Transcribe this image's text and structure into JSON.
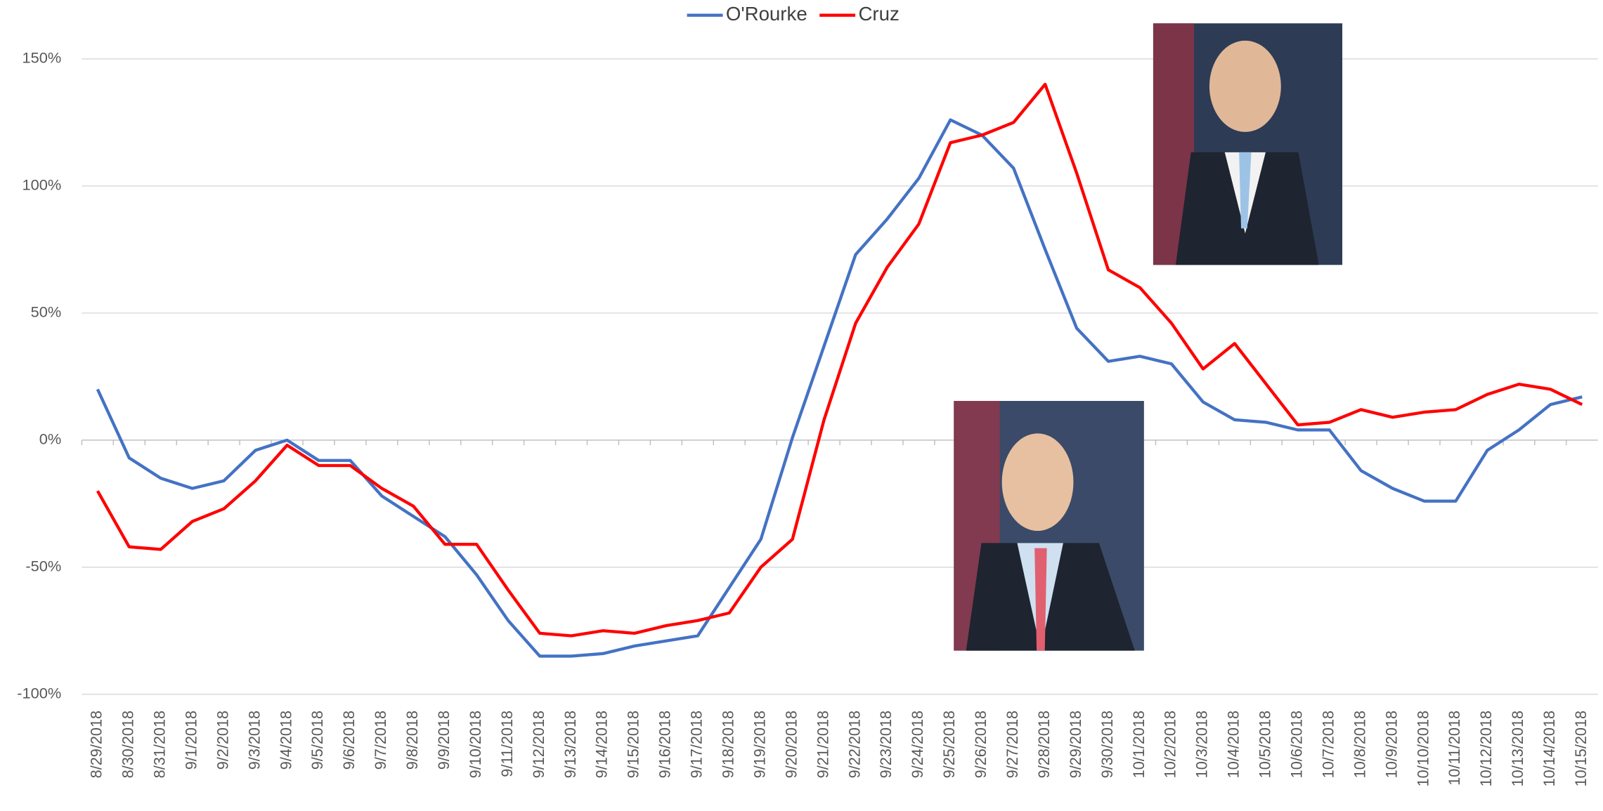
{
  "chart_data": {
    "type": "line",
    "categories": [
      "8/29/2018",
      "8/30/2018",
      "8/31/2018",
      "9/1/2018",
      "9/2/2018",
      "9/3/2018",
      "9/4/2018",
      "9/5/2018",
      "9/6/2018",
      "9/7/2018",
      "9/8/2018",
      "9/9/2018",
      "9/10/2018",
      "9/11/2018",
      "9/12/2018",
      "9/13/2018",
      "9/14/2018",
      "9/15/2018",
      "9/16/2018",
      "9/17/2018",
      "9/18/2018",
      "9/19/2018",
      "9/20/2018",
      "9/21/2018",
      "9/22/2018",
      "9/23/2018",
      "9/24/2018",
      "9/25/2018",
      "9/26/2018",
      "9/27/2018",
      "9/28/2018",
      "9/29/2018",
      "9/30/2018",
      "10/1/2018",
      "10/2/2018",
      "10/3/2018",
      "10/4/2018",
      "10/5/2018",
      "10/6/2018",
      "10/7/2018",
      "10/8/2018",
      "10/9/2018",
      "10/10/2018",
      "10/11/2018",
      "10/12/2018",
      "10/13/2018",
      "10/14/2018",
      "10/15/2018"
    ],
    "series": [
      {
        "name": "O'Rourke",
        "color": "#4472c4",
        "values": [
          20,
          -7,
          -15,
          -19,
          -16,
          -4,
          0,
          -8,
          -8,
          -22,
          -30,
          -38,
          -53,
          -71,
          -85,
          -85,
          -84,
          -81,
          -79,
          -77,
          -58,
          -39,
          1,
          37,
          73,
          87,
          103,
          126,
          120,
          107,
          75,
          44,
          31,
          33,
          30,
          15,
          8,
          7,
          4,
          4,
          -12,
          -19,
          -24,
          -24,
          -4,
          4,
          14,
          17
        ]
      },
      {
        "name": "Cruz",
        "color": "#ff0000",
        "values": [
          -20,
          -42,
          -43,
          -32,
          -27,
          -16,
          -2,
          -10,
          -10,
          -19,
          -26,
          -41,
          -41,
          -59,
          -76,
          -77,
          -75,
          -76,
          -73,
          -71,
          -68,
          -50,
          -39,
          8,
          46,
          68,
          85,
          117,
          120,
          125,
          140,
          105,
          67,
          60,
          46,
          28,
          38,
          22,
          6,
          7,
          12,
          9,
          11,
          12,
          18,
          22,
          20,
          14
        ]
      }
    ],
    "ylim": [
      -100,
      150
    ],
    "yticks": [
      {
        "value": -100,
        "label": "-100%"
      },
      {
        "value": -50,
        "label": "-50%"
      },
      {
        "value": 0,
        "label": "0%"
      },
      {
        "value": 50,
        "label": "50%"
      },
      {
        "value": 100,
        "label": "100%"
      },
      {
        "value": 150,
        "label": "150%"
      }
    ],
    "grid": true,
    "legend": "top"
  }
}
